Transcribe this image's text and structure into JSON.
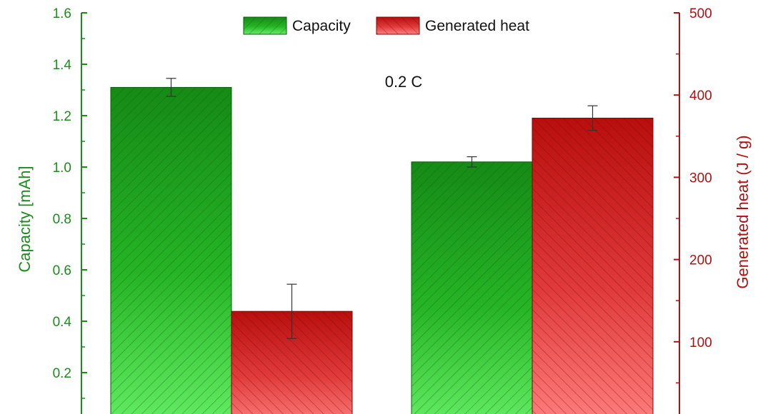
{
  "chart_data": {
    "type": "bar",
    "categories": [
      "",
      ""
    ],
    "series": [
      {
        "name": "Capacity",
        "axis": "left",
        "color": "#1e8f1e",
        "values": [
          1.31,
          1.02
        ],
        "errors": [
          0.035,
          0.02
        ]
      },
      {
        "name": "Generated heat",
        "axis": "right",
        "color": "#c81414",
        "values": [
          137,
          372
        ],
        "errors": [
          33,
          15
        ]
      }
    ],
    "ylabel": "Capacity [mAh]",
    "ylabel_right": "Generated heat (J / g)",
    "ylim": [
      0,
      1.6
    ],
    "ylim_right": [
      0,
      500
    ],
    "yticks": [
      "0.2",
      "0.4",
      "0.6",
      "0.8",
      "1.0",
      "1.2",
      "1.4",
      "1.6"
    ],
    "yticks_right": [
      "100",
      "200",
      "300",
      "400",
      "500"
    ],
    "annotation": "0.2 C",
    "legend": {
      "position": "top-center",
      "entries": [
        "Capacity",
        "Generated heat"
      ]
    },
    "grid": false,
    "hatched_bars": true
  }
}
